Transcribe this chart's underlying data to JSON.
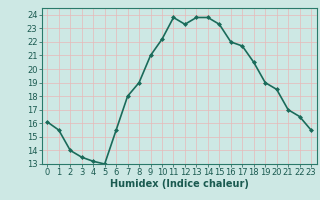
{
  "x": [
    0,
    1,
    2,
    3,
    4,
    5,
    6,
    7,
    8,
    9,
    10,
    11,
    12,
    13,
    14,
    15,
    16,
    17,
    18,
    19,
    20,
    21,
    22,
    23
  ],
  "y": [
    16.1,
    15.5,
    14.0,
    13.5,
    13.2,
    13.0,
    15.5,
    18.0,
    19.0,
    21.0,
    22.2,
    23.8,
    23.3,
    23.8,
    23.8,
    23.3,
    22.0,
    21.7,
    20.5,
    19.0,
    18.5,
    17.0,
    16.5,
    15.5
  ],
  "line_color": "#1a6b5a",
  "marker": "D",
  "marker_size": 2.0,
  "bg_color": "#cde8e4",
  "grid_color": "#e8b8b8",
  "xlabel": "Humidex (Indice chaleur)",
  "xlim": [
    -0.5,
    23.5
  ],
  "ylim": [
    13,
    24.5
  ],
  "yticks": [
    13,
    14,
    15,
    16,
    17,
    18,
    19,
    20,
    21,
    22,
    23,
    24
  ],
  "xticks": [
    0,
    1,
    2,
    3,
    4,
    5,
    6,
    7,
    8,
    9,
    10,
    11,
    12,
    13,
    14,
    15,
    16,
    17,
    18,
    19,
    20,
    21,
    22,
    23
  ],
  "xlabel_fontsize": 7,
  "tick_fontsize": 6,
  "line_width": 1.2
}
